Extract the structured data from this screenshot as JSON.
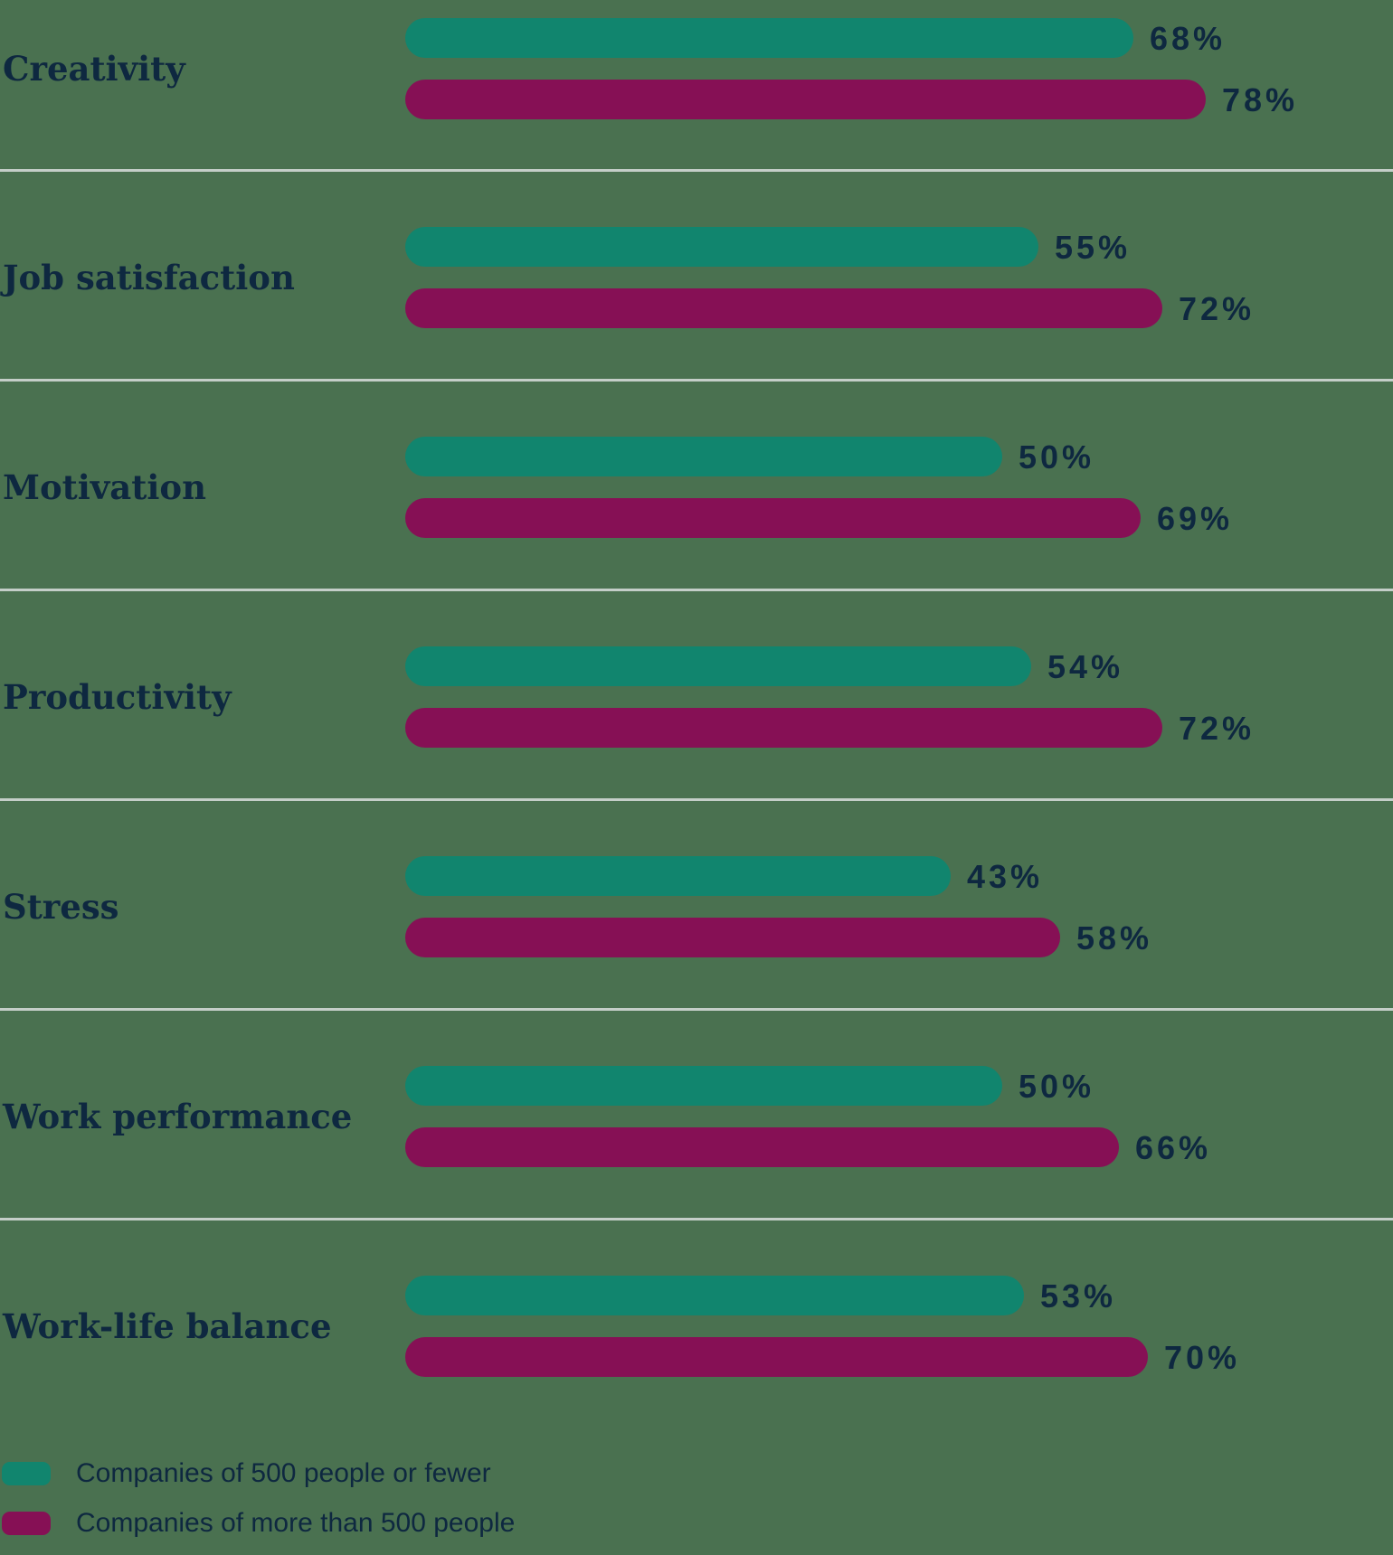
{
  "chart_data": {
    "type": "bar",
    "orientation": "horizontal",
    "title": "",
    "categories": [
      "Creativity",
      "Job satisfaction",
      "Motivation",
      "Productivity",
      "Stress",
      "Work performance",
      "Work-life balance"
    ],
    "series": [
      {
        "name": "Companies of 500 people or fewer",
        "color": "#11856E",
        "values": [
          68,
          55,
          50,
          54,
          43,
          50,
          53
        ]
      },
      {
        "name": "Companies of more than 500 people",
        "color": "#861055",
        "values": [
          78,
          72,
          69,
          72,
          58,
          66,
          70
        ]
      }
    ],
    "value_suffix": "%",
    "xlim": [
      0,
      100
    ],
    "grid": "horizontal-row-separators",
    "legend_position": "bottom-left"
  },
  "rows": [
    {
      "category": "Creativity",
      "values": [
        "68%",
        "78%"
      ]
    },
    {
      "category": "Job satisfaction",
      "values": [
        "55%",
        "72%"
      ]
    },
    {
      "category": "Motivation",
      "values": [
        "50%",
        "69%"
      ]
    },
    {
      "category": "Productivity",
      "values": [
        "54%",
        "72%"
      ]
    },
    {
      "category": "Stress",
      "values": [
        "43%",
        "58%"
      ]
    },
    {
      "category": "Work performance",
      "values": [
        "50%",
        "66%"
      ]
    },
    {
      "category": "Work-life balance",
      "values": [
        "53%",
        "70%"
      ]
    }
  ],
  "legend": {
    "items": [
      {
        "label": "Companies of 500 people or fewer",
        "color": "#11856E"
      },
      {
        "label": "Companies of more than 500 people",
        "color": "#861055"
      }
    ]
  },
  "colors": {
    "background": "#4A7150",
    "teal": "#11856E",
    "magenta": "#861055",
    "text_navy": "#0E2840",
    "separator": "#C4CEC8"
  }
}
